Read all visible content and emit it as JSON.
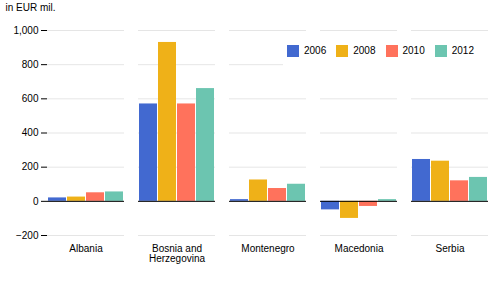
{
  "chart_data": {
    "type": "bar",
    "ylabel": "in EUR mil.",
    "categories": [
      "Albania",
      "Bosnia and\nHerzegovina",
      "Montenegro",
      "Macedonia",
      "Serbia"
    ],
    "series": [
      {
        "name": "2006",
        "values": [
          20,
          570,
          10,
          -50,
          245
        ]
      },
      {
        "name": "2008",
        "values": [
          25,
          930,
          125,
          -100,
          235
        ]
      },
      {
        "name": "2010",
        "values": [
          50,
          570,
          75,
          -30,
          120
        ]
      },
      {
        "name": "2012",
        "values": [
          55,
          660,
          100,
          10,
          140
        ]
      }
    ],
    "ylim": [
      -200,
      1000
    ],
    "yticks": [
      -200,
      0,
      200,
      400,
      600,
      800,
      1000
    ],
    "grid": true,
    "legend": "upper right"
  }
}
